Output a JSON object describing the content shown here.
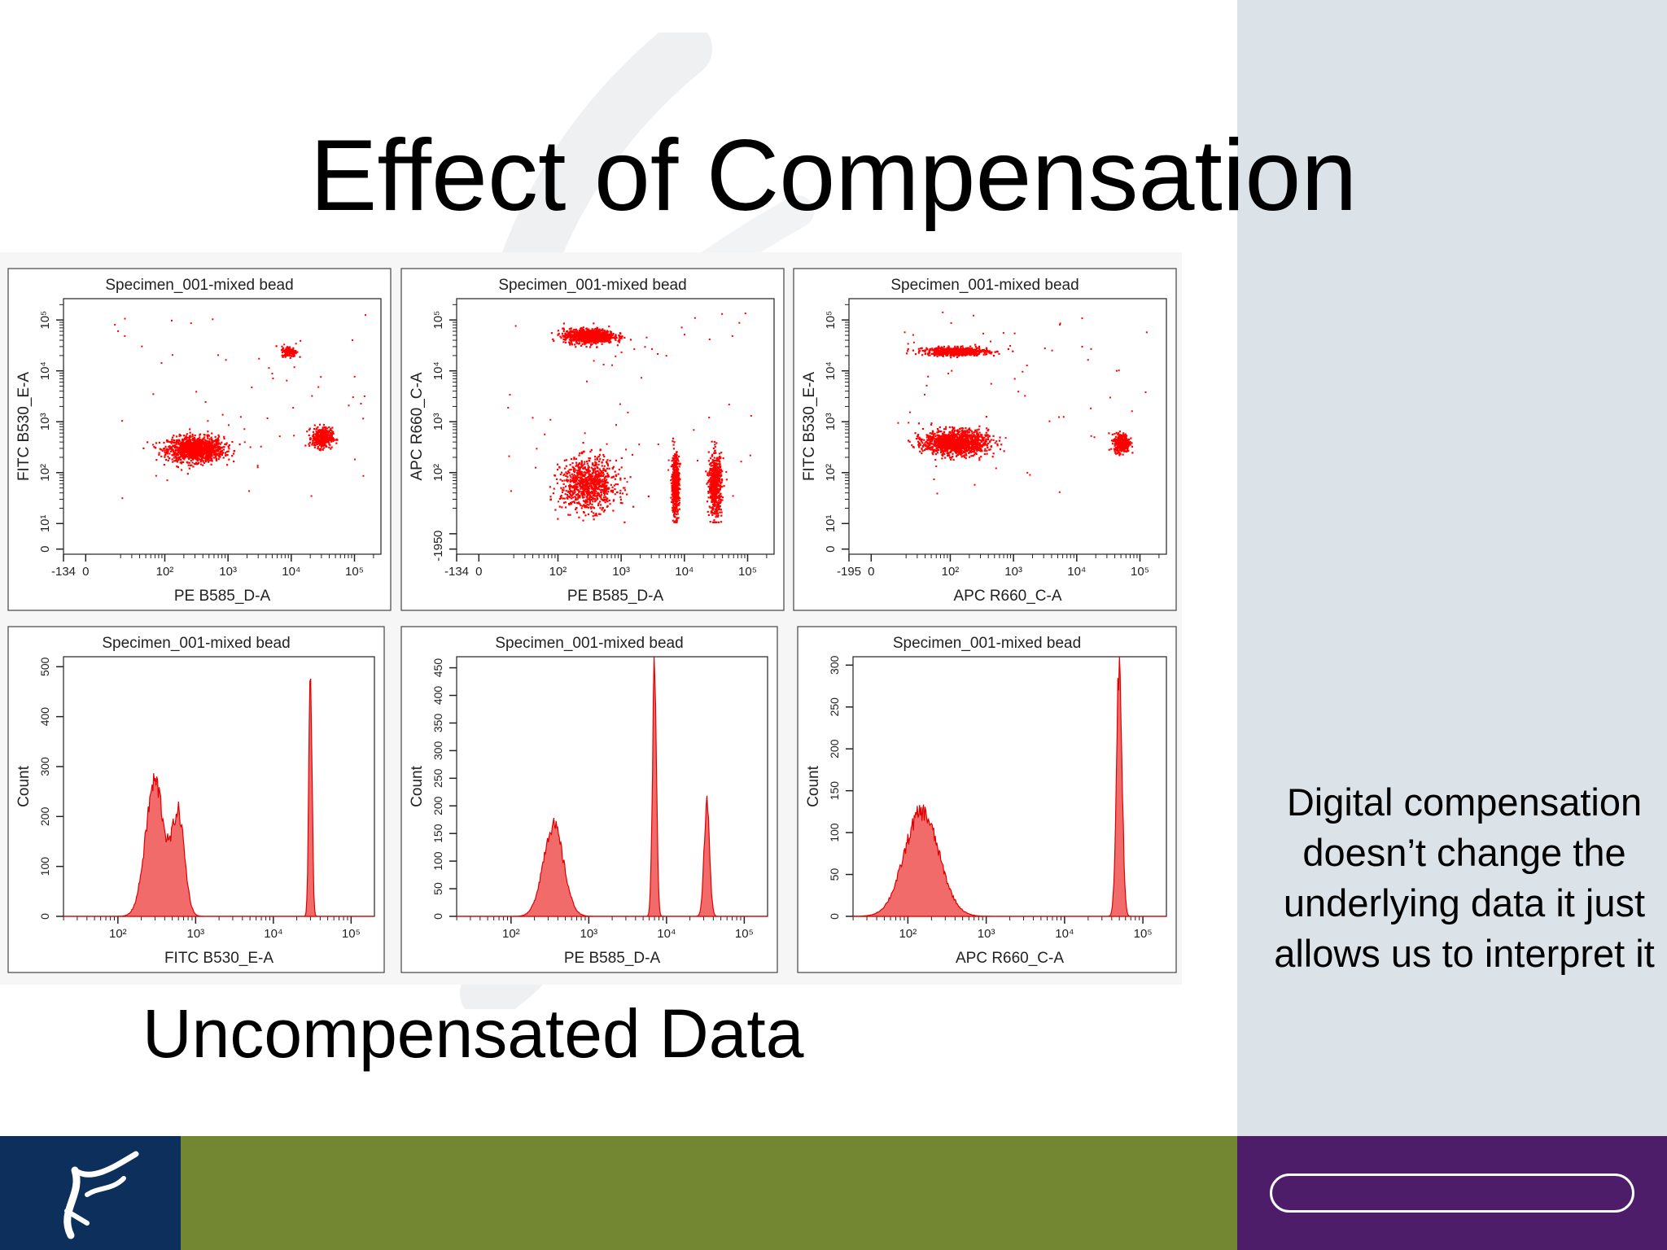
{
  "title": "Effect of Compensation",
  "caption": "Uncompensated Data",
  "side_note": "Digital compensation doesn’t change the underlying data it just allows us to interpret it",
  "colors": {
    "events": "#ff0000",
    "histogram_fill": "#f26b6b",
    "histogram_line": "#e00000",
    "right_panel": "#dce3e8",
    "footer_left": "#0c2f5c",
    "footer_mid": "#738733",
    "footer_right": "#4e1d6a"
  },
  "icons": {
    "footer_logo": "dna-helix-logo-icon",
    "footer_bar": "rounded-bar-outline"
  },
  "chart_data": [
    {
      "type": "scatter",
      "title": "Specimen_001-mixed bead",
      "xlabel": "PE B585_D-A",
      "ylabel": "FITC B530_E-A",
      "scale": "biexponential",
      "xlim": [
        -134,
        262144
      ],
      "ylim": [
        -134,
        262144
      ],
      "xticks": [
        "-134",
        "0",
        "10²",
        "10³",
        "10⁴",
        "10⁵"
      ],
      "yticks": [
        "0",
        "10¹",
        "10²",
        "10³",
        "10⁴",
        "10⁵"
      ],
      "populations": [
        {
          "x": 300,
          "y": 300,
          "sx": 0.22,
          "sy": 0.12,
          "n": 1300
        },
        {
          "x": 30000,
          "y": 500,
          "sx": 0.08,
          "sy": 0.1,
          "n": 400
        },
        {
          "x": 9000,
          "y": 25000,
          "sx": 0.06,
          "sy": 0.05,
          "n": 150
        }
      ]
    },
    {
      "type": "scatter",
      "title": "Specimen_001-mixed bead",
      "xlabel": "PE B585_D-A",
      "ylabel": "APC R660_C-A",
      "scale": "biexponential",
      "xlim": [
        -134,
        262144
      ],
      "ylim": [
        -195,
        262144
      ],
      "xticks": [
        "-134",
        "0",
        "10²",
        "10³",
        "10⁴",
        "10⁵"
      ],
      "yticks": [
        "-195",
        "0",
        "10²",
        "10³",
        "10⁴",
        "10⁵"
      ],
      "populations": [
        {
          "x": 300,
          "y": 50000,
          "sx": 0.2,
          "sy": 0.07,
          "n": 900
        },
        {
          "x": 300,
          "y": 60,
          "sx": 0.22,
          "sy": 0.25,
          "n": 900
        },
        {
          "x": 7000,
          "y": 60,
          "sx": 0.03,
          "sy": 0.3,
          "n": 500
        },
        {
          "x": 30000,
          "y": 60,
          "sx": 0.05,
          "sy": 0.3,
          "n": 600
        }
      ]
    },
    {
      "type": "scatter",
      "title": "Specimen_001-mixed bead",
      "xlabel": "APC R660_C-A",
      "ylabel": "FITC B530_E-A",
      "scale": "biexponential",
      "xlim": [
        -195,
        262144
      ],
      "ylim": [
        -134,
        262144
      ],
      "xticks": [
        "-195",
        "0",
        "10²",
        "10³",
        "10⁴",
        "10⁵"
      ],
      "yticks": [
        "0",
        "10¹",
        "10²",
        "10³",
        "10⁴",
        "10⁵"
      ],
      "populations": [
        {
          "x": 120,
          "y": 25000,
          "sx": 0.25,
          "sy": 0.04,
          "n": 700
        },
        {
          "x": 120,
          "y": 400,
          "sx": 0.25,
          "sy": 0.12,
          "n": 1300
        },
        {
          "x": 50000,
          "y": 400,
          "sx": 0.06,
          "sy": 0.09,
          "n": 400
        }
      ]
    },
    {
      "type": "area",
      "title": "Specimen_001-mixed bead",
      "xlabel": "FITC B530_E-A",
      "ylabel": "Count",
      "ylim": [
        0,
        520
      ],
      "xticks": [
        "10²",
        "10³",
        "10⁴",
        "10⁵"
      ],
      "yticks": [
        0,
        100,
        200,
        300,
        400,
        500
      ],
      "peaks": [
        {
          "center": 300,
          "width": 0.12,
          "height": 270
        },
        {
          "center": 600,
          "width": 0.08,
          "height": 200
        },
        {
          "center": 30000,
          "width": 0.02,
          "height": 505
        }
      ]
    },
    {
      "type": "area",
      "title": "Specimen_001-mixed bead",
      "xlabel": "PE B585_D-A",
      "ylabel": "Count",
      "ylim": [
        0,
        470
      ],
      "xticks": [
        "10²",
        "10³",
        "10⁴",
        "10⁵"
      ],
      "yticks": [
        0,
        50,
        100,
        150,
        200,
        250,
        300,
        350,
        400,
        450
      ],
      "peaks": [
        {
          "center": 350,
          "width": 0.13,
          "height": 165
        },
        {
          "center": 7000,
          "width": 0.025,
          "height": 470
        },
        {
          "center": 33000,
          "width": 0.035,
          "height": 205
        }
      ]
    },
    {
      "type": "area",
      "title": "Specimen_001-mixed bead",
      "xlabel": "APC R660_C-A",
      "ylabel": "Count",
      "ylim": [
        0,
        310
      ],
      "xticks": [
        "10²",
        "10³",
        "10⁴",
        "10⁵"
      ],
      "yticks": [
        0,
        50,
        100,
        150,
        200,
        250,
        300
      ],
      "peaks": [
        {
          "center": 150,
          "width": 0.22,
          "height": 125
        },
        {
          "center": 50000,
          "width": 0.035,
          "height": 305
        }
      ]
    }
  ]
}
